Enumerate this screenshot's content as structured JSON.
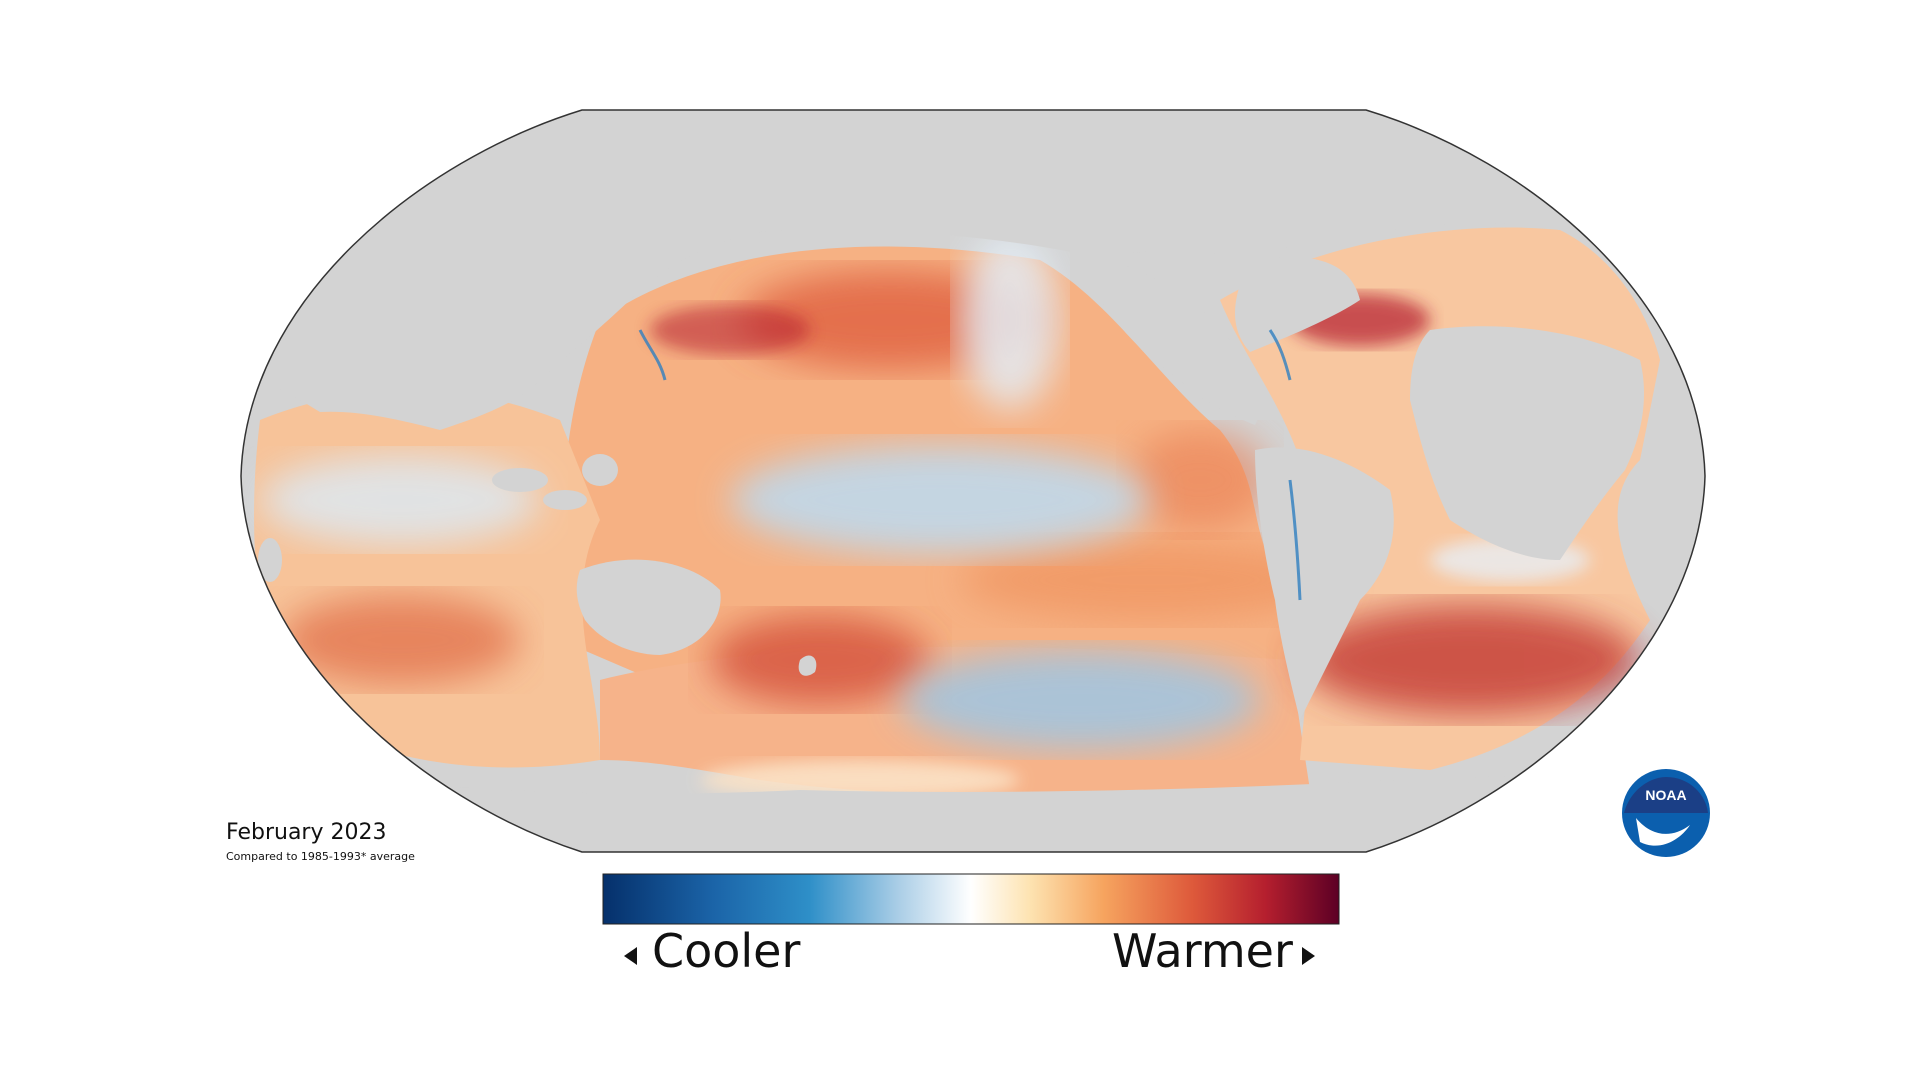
{
  "caption": {
    "title": "February 2023",
    "subtitle": "Compared to 1985-1993* average"
  },
  "legend": {
    "cool_label": "Cooler",
    "warm_label": "Warmer",
    "colors": [
      "#05306b",
      "#1b64a8",
      "#2e8fc8",
      "#a9cde6",
      "#ffffff",
      "#fde3b1",
      "#f6a45f",
      "#de5a3b",
      "#b51f2e",
      "#5c0025"
    ]
  },
  "map": {
    "projection": "Robinson-style world",
    "land_color": "#d3d3d3",
    "ocean_base_color": "#f9d7b4"
  },
  "logo": {
    "text": "NOAA",
    "primary_color": "#0b5fae",
    "secondary_color": "#1b3f86"
  }
}
